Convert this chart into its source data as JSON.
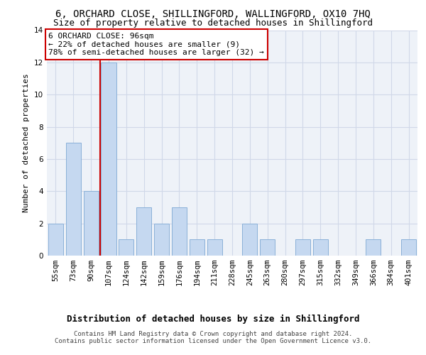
{
  "title": "6, ORCHARD CLOSE, SHILLINGFORD, WALLINGFORD, OX10 7HQ",
  "subtitle": "Size of property relative to detached houses in Shillingford",
  "xlabel_bottom": "Distribution of detached houses by size in Shillingford",
  "ylabel": "Number of detached properties",
  "categories": [
    "55sqm",
    "73sqm",
    "90sqm",
    "107sqm",
    "124sqm",
    "142sqm",
    "159sqm",
    "176sqm",
    "194sqm",
    "211sqm",
    "228sqm",
    "245sqm",
    "263sqm",
    "280sqm",
    "297sqm",
    "315sqm",
    "332sqm",
    "349sqm",
    "366sqm",
    "384sqm",
    "401sqm"
  ],
  "values": [
    2,
    7,
    4,
    12,
    1,
    3,
    2,
    3,
    1,
    1,
    0,
    2,
    1,
    0,
    1,
    1,
    0,
    0,
    1,
    0,
    1
  ],
  "bar_color": "#c5d8f0",
  "bar_edge_color": "#8ab0d8",
  "grid_color": "#d0d8e8",
  "bg_color": "#eef2f8",
  "marker_line_color": "#cc0000",
  "annotation_box_text": "6 ORCHARD CLOSE: 96sqm\n← 22% of detached houses are smaller (9)\n78% of semi-detached houses are larger (32) →",
  "annotation_box_edge_color": "#cc0000",
  "ylim": [
    0,
    14
  ],
  "yticks": [
    0,
    2,
    4,
    6,
    8,
    10,
    12,
    14
  ],
  "footer": "Contains HM Land Registry data © Crown copyright and database right 2024.\nContains public sector information licensed under the Open Government Licence v3.0.",
  "title_fontsize": 10,
  "subtitle_fontsize": 9,
  "ylabel_fontsize": 8,
  "xlabel_bottom_fontsize": 9,
  "tick_fontsize": 7.5,
  "annotation_fontsize": 8,
  "footer_fontsize": 6.5
}
